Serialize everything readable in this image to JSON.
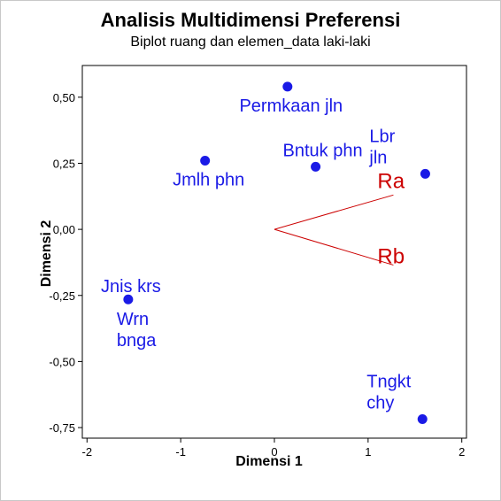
{
  "chart_data": {
    "type": "scatter",
    "title": "Analisis Multidimensi Preferensi",
    "subtitle": "Biplot ruang dan elemen_data laki-laki",
    "xlabel": "Dimensi 1",
    "ylabel": "Dimensi 2",
    "xlim": [
      -2.05,
      2.05
    ],
    "ylim": [
      -0.79,
      0.62
    ],
    "x_ticks": [
      -2,
      -1,
      0,
      1,
      2
    ],
    "x_tick_labels": [
      "-2",
      "-1",
      "0",
      "1",
      "2"
    ],
    "y_ticks": [
      0.5,
      0.25,
      0,
      -0.25,
      -0.5,
      -0.75
    ],
    "y_tick_labels": [
      "0,50",
      "0,25",
      "0,00",
      "-0,25",
      "-0,50",
      "-0,75"
    ],
    "grid": false,
    "point_color": "#1a1ae6",
    "vector_color": "#cc0000",
    "points": [
      {
        "label": [
          "Permkaan jln"
        ],
        "x": 0.14,
        "y": 0.54,
        "label_pos": "below"
      },
      {
        "label": [
          "Bntuk phn"
        ],
        "x": 0.44,
        "y": 0.237,
        "label_pos": "above"
      },
      {
        "label": [
          "Jmlh phn"
        ],
        "x": -0.74,
        "y": 0.26,
        "label_pos": "below"
      },
      {
        "label": [
          "Lbr",
          "jln"
        ],
        "x": 1.61,
        "y": 0.21,
        "label_pos": "above-left"
      },
      {
        "label": [
          "Jnis krs",
          "Wrn",
          "bnga"
        ],
        "x": -1.56,
        "y": -0.265,
        "label_pos": "split"
      },
      {
        "label": [
          "Tngkt",
          "chy"
        ],
        "x": 1.58,
        "y": -0.718,
        "label_pos": "above-left"
      }
    ],
    "vectors": [
      {
        "label": "Ra",
        "x": 1.27,
        "y": 0.13
      },
      {
        "label": "Rb",
        "x": 1.27,
        "y": -0.135
      }
    ]
  }
}
